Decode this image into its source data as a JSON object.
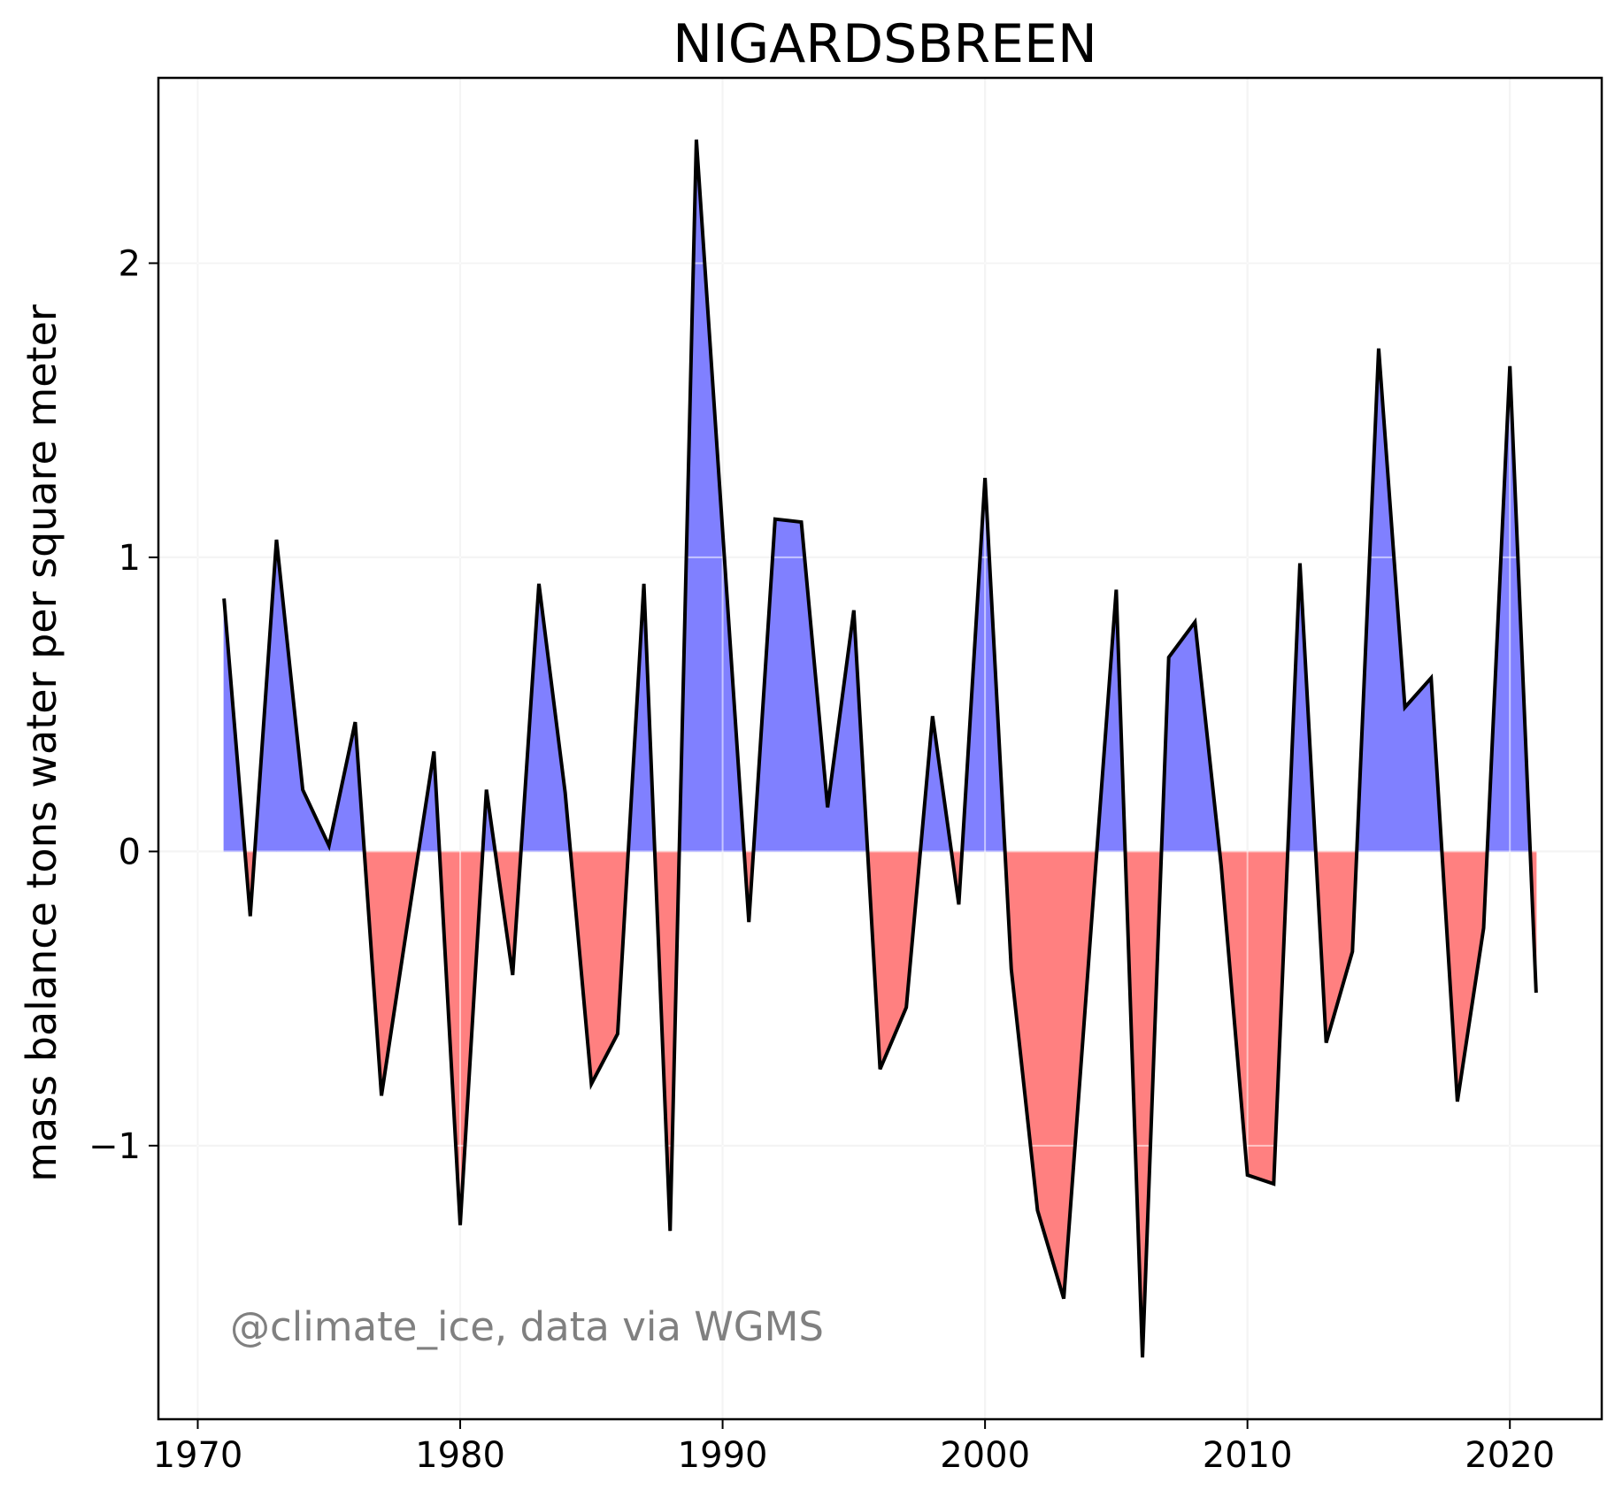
{
  "chart_data": {
    "type": "area",
    "title": "NIGARDSBREEN",
    "xlabel": "",
    "ylabel": "mass balance tons water per square meter",
    "annotation": "@climate_ice, data via WGMS",
    "xlim": [
      1968.5,
      2023.5
    ],
    "ylim": [
      -1.93,
      2.63
    ],
    "xticks": [
      1970,
      1980,
      1990,
      2000,
      2010,
      2020
    ],
    "yticks": [
      -1,
      0,
      1,
      2
    ],
    "ytick_labels": [
      "−1",
      "0",
      "1",
      "2"
    ],
    "grid": true,
    "colors": {
      "positive_fill": "#8080ff",
      "negative_fill": "#ff8080",
      "line": "#000000",
      "grid": "#e6e6e6",
      "annotation": "#808080"
    },
    "x": [
      1971,
      1972,
      1973,
      1974,
      1975,
      1976,
      1977,
      1978,
      1979,
      1980,
      1981,
      1982,
      1983,
      1984,
      1985,
      1986,
      1987,
      1988,
      1989,
      1990,
      1991,
      1992,
      1993,
      1994,
      1995,
      1996,
      1997,
      1998,
      1999,
      2000,
      2001,
      2002,
      2003,
      2004,
      2005,
      2006,
      2007,
      2008,
      2009,
      2010,
      2011,
      2012,
      2013,
      2014,
      2015,
      2016,
      2017,
      2018,
      2019,
      2020,
      2021
    ],
    "y": [
      0.86,
      -0.22,
      1.06,
      0.21,
      0.02,
      0.44,
      -0.83,
      -0.24,
      0.34,
      -1.27,
      0.21,
      -0.42,
      0.91,
      0.2,
      -0.79,
      -0.62,
      0.91,
      -1.29,
      2.42,
      1.09,
      -0.24,
      1.13,
      1.12,
      0.15,
      0.82,
      -0.74,
      -0.53,
      0.46,
      -0.18,
      1.27,
      -0.4,
      -1.22,
      -1.52,
      -0.31,
      0.89,
      -1.72,
      0.66,
      0.78,
      -0.05,
      -1.1,
      -1.13,
      0.98,
      -0.65,
      -0.34,
      1.71,
      0.49,
      0.59,
      -0.85,
      -0.26,
      1.65,
      -0.48
    ]
  }
}
